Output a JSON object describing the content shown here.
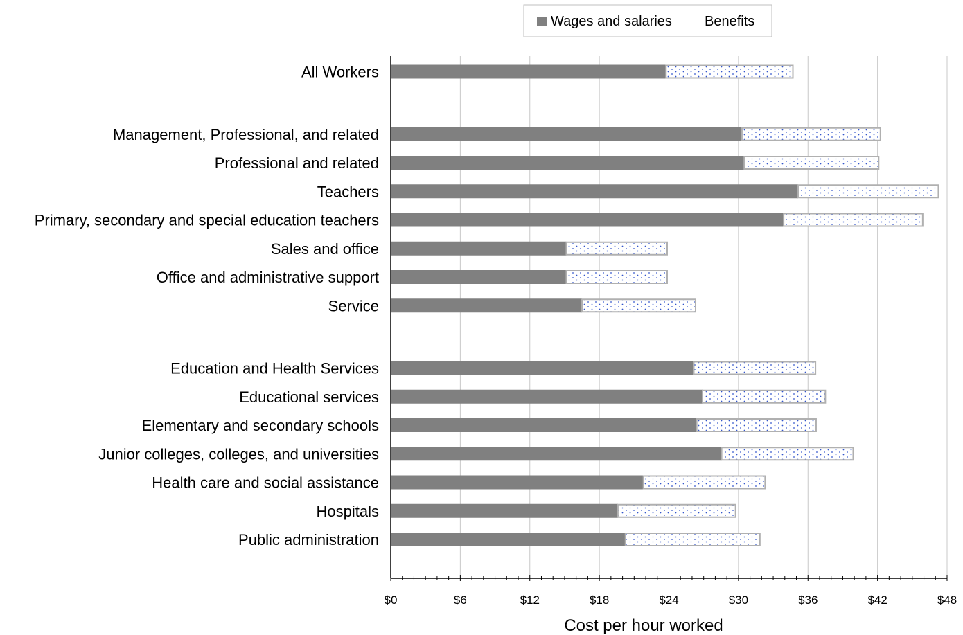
{
  "chart_data": {
    "type": "bar",
    "orientation": "horizontal",
    "stacked": true,
    "xlabel": "Cost per hour worked",
    "ylabel": "",
    "xlim": [
      0,
      48
    ],
    "x_tick_step": 6,
    "x_tick_labels": [
      "$0",
      "$6",
      "$12",
      "$18",
      "$24",
      "$30",
      "$36",
      "$42",
      "$48"
    ],
    "grid": "vertical",
    "legend_position": "top-center",
    "rows": [
      {
        "label": "All Workers",
        "group": 0
      },
      {
        "label": "Management, Professional, and related",
        "group": 1
      },
      {
        "label": "Professional and related",
        "group": 1
      },
      {
        "label": "Teachers",
        "group": 1
      },
      {
        "label": "Primary, secondary and special education teachers",
        "group": 1
      },
      {
        "label": "Sales and office",
        "group": 1
      },
      {
        "label": "Office and administrative support",
        "group": 1
      },
      {
        "label": "Service",
        "group": 1
      },
      {
        "label": "Education and Health Services",
        "group": 2
      },
      {
        "label": "Educational services",
        "group": 2
      },
      {
        "label": "Elementary and secondary schools",
        "group": 2
      },
      {
        "label": "Junior colleges, colleges, and universities",
        "group": 2
      },
      {
        "label": "Health care and social assistance",
        "group": 2
      },
      {
        "label": "Hospitals",
        "group": 2
      },
      {
        "label": "Public administration",
        "group": 2
      }
    ],
    "series": [
      {
        "name": "Wages and salaries",
        "color": "#808080",
        "values": [
          23.75,
          30.3,
          30.5,
          35.15,
          33.9,
          15.15,
          15.15,
          16.5,
          26.15,
          26.9,
          26.4,
          28.55,
          21.8,
          19.6,
          20.25
        ]
      },
      {
        "name": "Benefits",
        "color": "#ffffff",
        "pattern": "blue-dots",
        "values": [
          10.95,
          11.95,
          11.6,
          12.1,
          12.0,
          8.7,
          8.7,
          9.8,
          10.5,
          10.6,
          10.3,
          11.35,
          10.5,
          10.15,
          11.6
        ]
      }
    ]
  }
}
